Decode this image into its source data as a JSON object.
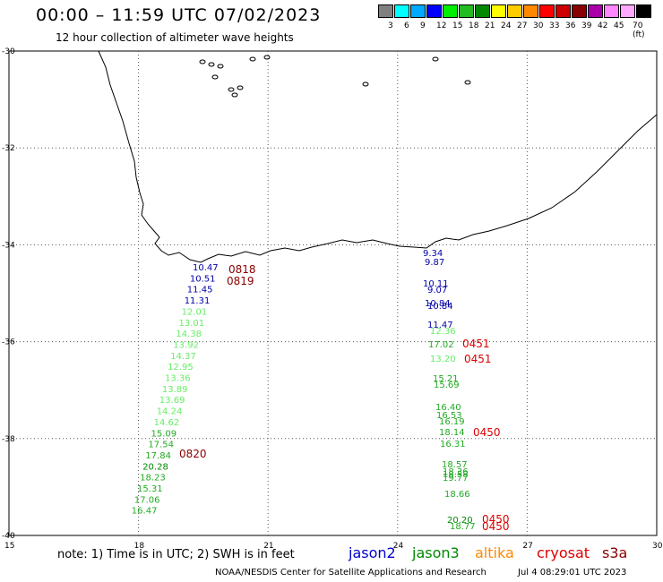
{
  "header": {
    "title": "00:00 – 11:59 UTC 07/02/2023",
    "subtitle": "12 hour collection of altimeter wave heights"
  },
  "legend": {
    "colors": [
      "#808080",
      "#00ffff",
      "#00aaff",
      "#0000ff",
      "#00ee00",
      "#22bb22",
      "#008800",
      "#ffff00",
      "#ffcc00",
      "#ff8800",
      "#ff0000",
      "#cc0000",
      "#880000",
      "#aa00aa",
      "#ff88ff",
      "#ffaaff",
      "#000000"
    ],
    "labels": [
      "3",
      "6",
      "9",
      "12",
      "15",
      "18",
      "21",
      "24",
      "27",
      "30",
      "33",
      "36",
      "39",
      "42",
      "45",
      "70 (ft)"
    ]
  },
  "axes": {
    "lat_labels": [
      "-30",
      "-32",
      "-34",
      "-36",
      "-38",
      "-40"
    ],
    "lon_labels": [
      "15",
      "18",
      "21",
      "24",
      "27",
      "30"
    ]
  },
  "map_data": {
    "type": "map",
    "region": "South Africa southern coast",
    "west_track": [
      {
        "lat": -34.6,
        "swh": "10.47",
        "color": "#0000aa"
      },
      {
        "lat": -34.8,
        "swh": "10.51",
        "color": "#0000aa"
      },
      {
        "lat": -35.1,
        "swh": "11.45",
        "color": "#0000aa"
      },
      {
        "lat": -35.35,
        "swh": "11.31",
        "color": "#0000aa"
      },
      {
        "lat": -35.6,
        "swh": "12.01",
        "color": "#66ee66"
      },
      {
        "lat": -35.85,
        "swh": "13.01",
        "color": "#66ee66"
      },
      {
        "lat": -36.1,
        "swh": "14.38",
        "color": "#66ee66"
      },
      {
        "lat": -36.35,
        "swh": "13.92",
        "color": "#66ee66"
      },
      {
        "lat": -36.6,
        "swh": "14.37",
        "color": "#66ee66"
      },
      {
        "lat": -36.85,
        "swh": "12.95",
        "color": "#66ee66"
      },
      {
        "lat": -37.1,
        "swh": "13.36",
        "color": "#66ee66"
      },
      {
        "lat": -37.35,
        "swh": "13.89",
        "color": "#66ee66"
      },
      {
        "lat": -37.6,
        "swh": "13.69",
        "color": "#66ee66"
      },
      {
        "lat": -37.85,
        "swh": "14.24",
        "color": "#66ee66"
      },
      {
        "lat": -38.1,
        "swh": "14.62",
        "color": "#66ee66"
      },
      {
        "lat": -38.35,
        "swh": "15.09",
        "color": "#22aa22"
      },
      {
        "lat": -38.6,
        "swh": "17.54",
        "color": "#22aa22"
      },
      {
        "lat": -38.85,
        "swh": "17.84",
        "color": "#22aa22"
      },
      {
        "lat": -39.1,
        "swh": "20.28",
        "color": "#008800"
      },
      {
        "lat": -39.35,
        "swh": "18.23",
        "color": "#22aa22"
      },
      {
        "lat": -39.6,
        "swh": "15.31",
        "color": "#22aa22"
      },
      {
        "lat": -39.85,
        "swh": "17.06",
        "color": "#22aa22"
      },
      {
        "lat": -40.1,
        "swh": "16.47",
        "color": "#22aa22"
      }
    ],
    "west_times": [
      {
        "time": "0818",
        "color": "#880000"
      },
      {
        "time": "0819",
        "color": "#880000"
      },
      {
        "time": "0820",
        "color": "#880000"
      }
    ],
    "east_track": [
      {
        "swh": "9.34",
        "color": "#0000aa"
      },
      {
        "swh": "9.87",
        "color": "#0000aa"
      },
      {
        "swh": "10.11",
        "color": "#0000aa"
      },
      {
        "swh": "9.07",
        "color": "#0000aa"
      },
      {
        "swh": "10.84",
        "color": "#0000aa"
      },
      {
        "swh": "10.84",
        "color": "#0000aa"
      },
      {
        "swh": "11.47",
        "color": "#0000aa"
      },
      {
        "swh": "12.36",
        "color": "#66ee66"
      },
      {
        "swh": "17.02",
        "color": "#22aa22"
      },
      {
        "swh": "13.20",
        "color": "#66ee66"
      },
      {
        "swh": "15.21",
        "color": "#22aa22"
      },
      {
        "swh": "15.69",
        "color": "#22aa22"
      },
      {
        "swh": "16.40",
        "color": "#22aa22"
      },
      {
        "swh": "16.53",
        "color": "#22aa22"
      },
      {
        "swh": "16.19",
        "color": "#22aa22"
      },
      {
        "swh": "18.14",
        "color": "#22aa22"
      },
      {
        "swh": "16.31",
        "color": "#22aa22"
      },
      {
        "swh": "18.57",
        "color": "#22aa22"
      },
      {
        "swh": "18.36",
        "color": "#22aa22"
      },
      {
        "swh": "18.58",
        "color": "#22aa22"
      },
      {
        "swh": "19.77",
        "color": "#22aa22"
      },
      {
        "swh": "18.66",
        "color": "#22aa22"
      },
      {
        "swh": "20.20",
        "color": "#008800"
      },
      {
        "swh": "18.77",
        "color": "#22aa22"
      }
    ],
    "east_times": [
      {
        "time": "0451",
        "color": "#dd0000"
      },
      {
        "time": "0451",
        "color": "#dd0000"
      },
      {
        "time": "0450",
        "color": "#dd0000"
      },
      {
        "time": "0450",
        "color": "#dd0000"
      },
      {
        "time": "0450",
        "color": "#dd0000"
      }
    ]
  },
  "footer": {
    "note": "note: 1) Time is in UTC; 2) SWH is in feet",
    "satellites": [
      {
        "name": "jason2",
        "color": "#0000cc"
      },
      {
        "name": "jason3",
        "color": "#008800"
      },
      {
        "name": "altika",
        "color": "#ff8800"
      },
      {
        "name": "cryosat",
        "color": "#dd0000"
      },
      {
        "name": "s3a",
        "color": "#880000"
      }
    ],
    "credit": "NOAA/NESDIS Center for Satellite Applications and Research",
    "timestamp": "Jul  4 08:29:01 UTC 2023"
  }
}
